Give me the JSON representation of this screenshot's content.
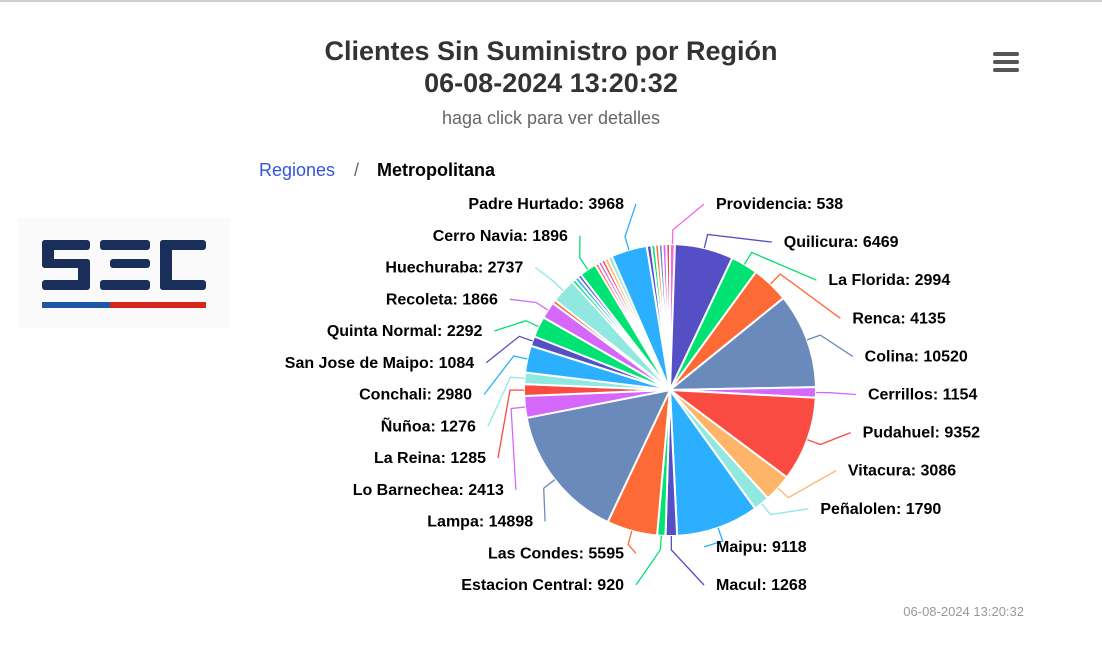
{
  "title_line1": "Clientes Sin Suministro por Región",
  "title_line2": "06-08-2024 13:20:32",
  "subtitle": "haga click para ver detalles",
  "breadcrumb": {
    "link": "Regiones",
    "separator": "/",
    "current": "Metropolitana"
  },
  "logo": {
    "text": "SEC",
    "colors": {
      "navy": "#1a2e5a",
      "red": "#d9261c",
      "blue": "#1f57a8"
    }
  },
  "menu_icon": "hamburger-menu-icon",
  "credits": "06-08-2024 13:20:32",
  "chart_data": {
    "type": "pie",
    "title": "Clientes Sin Suministro por Región 06-08-2024 13:20:32",
    "subtitle": "haga click para ver detalles",
    "slices": [
      {
        "name": "Providencia",
        "value": 538,
        "color": "#f26be0"
      },
      {
        "name": "Quilicura",
        "value": 6469,
        "color": "#544fc5"
      },
      {
        "name": "La Florida",
        "value": 2994,
        "color": "#00e272"
      },
      {
        "name": "Renca",
        "value": 4135,
        "color": "#fe6a35"
      },
      {
        "name": "Colina",
        "value": 10520,
        "color": "#6b8abc"
      },
      {
        "name": "Cerrillos",
        "value": 1154,
        "color": "#d568fb"
      },
      {
        "name": "Pudahuel",
        "value": 9352,
        "color": "#fa4b42"
      },
      {
        "name": "Vitacura",
        "value": 3086,
        "color": "#feb56a"
      },
      {
        "name": "Peñalolen",
        "value": 1790,
        "color": "#91e8e1"
      },
      {
        "name": "Maipu",
        "value": 9118,
        "color": "#2caffe"
      },
      {
        "name": "Macul",
        "value": 1268,
        "color": "#544fc5"
      },
      {
        "name": "Estacion Central",
        "value": 920,
        "color": "#00e272"
      },
      {
        "name": "Las Condes",
        "value": 5595,
        "color": "#fe6a35"
      },
      {
        "name": "Lampa",
        "value": 14898,
        "color": "#6b8abc"
      },
      {
        "name": "Lo Barnechea",
        "value": 2413,
        "color": "#d568fb"
      },
      {
        "name": "La Reina",
        "value": 1285,
        "color": "#fa4b42"
      },
      {
        "name": "Ñuñoa",
        "value": 1276,
        "color": "#91e8e1"
      },
      {
        "name": "Conchali",
        "value": 2980,
        "color": "#2caffe"
      },
      {
        "name": "San Jose de Maipo",
        "value": 1084,
        "color": "#544fc5"
      },
      {
        "name": "Quinta Normal",
        "value": 2292,
        "color": "#00e272"
      },
      {
        "name": "Recoleta",
        "value": 1866,
        "color": "#d568fb"
      },
      {
        "name": "",
        "value": 420,
        "color": "#fe6a35"
      },
      {
        "name": "Huechuraba",
        "value": 2737,
        "color": "#91e8e1"
      },
      {
        "name": "",
        "value": 400,
        "color": "#00e272"
      },
      {
        "name": "",
        "value": 420,
        "color": "#2caffe"
      },
      {
        "name": "",
        "value": 390,
        "color": "#544fc5"
      },
      {
        "name": "Cerro Navia",
        "value": 1896,
        "color": "#00e272"
      },
      {
        "name": "",
        "value": 380,
        "color": "#fe6a35"
      },
      {
        "name": "",
        "value": 400,
        "color": "#d568fb"
      },
      {
        "name": "",
        "value": 390,
        "color": "#fa4b42"
      },
      {
        "name": "",
        "value": 420,
        "color": "#feb56a"
      },
      {
        "name": "",
        "value": 460,
        "color": "#91e8e1"
      },
      {
        "name": "Padre Hurtado",
        "value": 3968,
        "color": "#2caffe"
      },
      {
        "name": "",
        "value": 500,
        "color": "#544fc5"
      },
      {
        "name": "",
        "value": 420,
        "color": "#00e272"
      },
      {
        "name": "",
        "value": 400,
        "color": "#fe6a35"
      },
      {
        "name": "",
        "value": 410,
        "color": "#6b8abc"
      },
      {
        "name": "",
        "value": 420,
        "color": "#d568fb"
      },
      {
        "name": "",
        "value": 400,
        "color": "#fa4b42"
      }
    ]
  }
}
